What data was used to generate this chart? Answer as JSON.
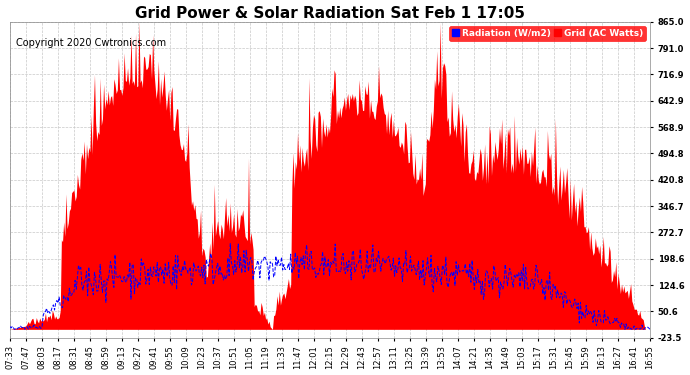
{
  "title": "Grid Power & Solar Radiation Sat Feb 1 17:05",
  "copyright": "Copyright 2020 Cwtronics.com",
  "legend_label_radiation": "Radiation (W/m2)",
  "legend_label_grid": "Grid (AC Watts)",
  "yticks": [
    -23.5,
    50.6,
    124.6,
    198.6,
    272.7,
    346.7,
    420.8,
    494.8,
    568.9,
    642.9,
    716.9,
    791.0,
    865.0
  ],
  "ylim": [
    -23.5,
    865.0
  ],
  "background_color": "#ffffff",
  "grid_color": "#c8c8c8",
  "red_color": "#ff0000",
  "blue_color": "#0000ff",
  "x_labels": [
    "07:33",
    "07:47",
    "08:03",
    "08:17",
    "08:31",
    "08:45",
    "08:59",
    "09:13",
    "09:27",
    "09:41",
    "09:55",
    "10:09",
    "10:23",
    "10:37",
    "10:51",
    "11:05",
    "11:19",
    "11:33",
    "11:47",
    "12:01",
    "12:15",
    "12:29",
    "12:43",
    "12:57",
    "13:11",
    "13:25",
    "13:39",
    "13:53",
    "14:07",
    "14:21",
    "14:35",
    "14:49",
    "15:03",
    "15:17",
    "15:31",
    "15:45",
    "15:59",
    "16:13",
    "16:27",
    "16:41",
    "16:55"
  ],
  "title_fontsize": 11,
  "tick_fontsize": 6,
  "copyright_fontsize": 7
}
